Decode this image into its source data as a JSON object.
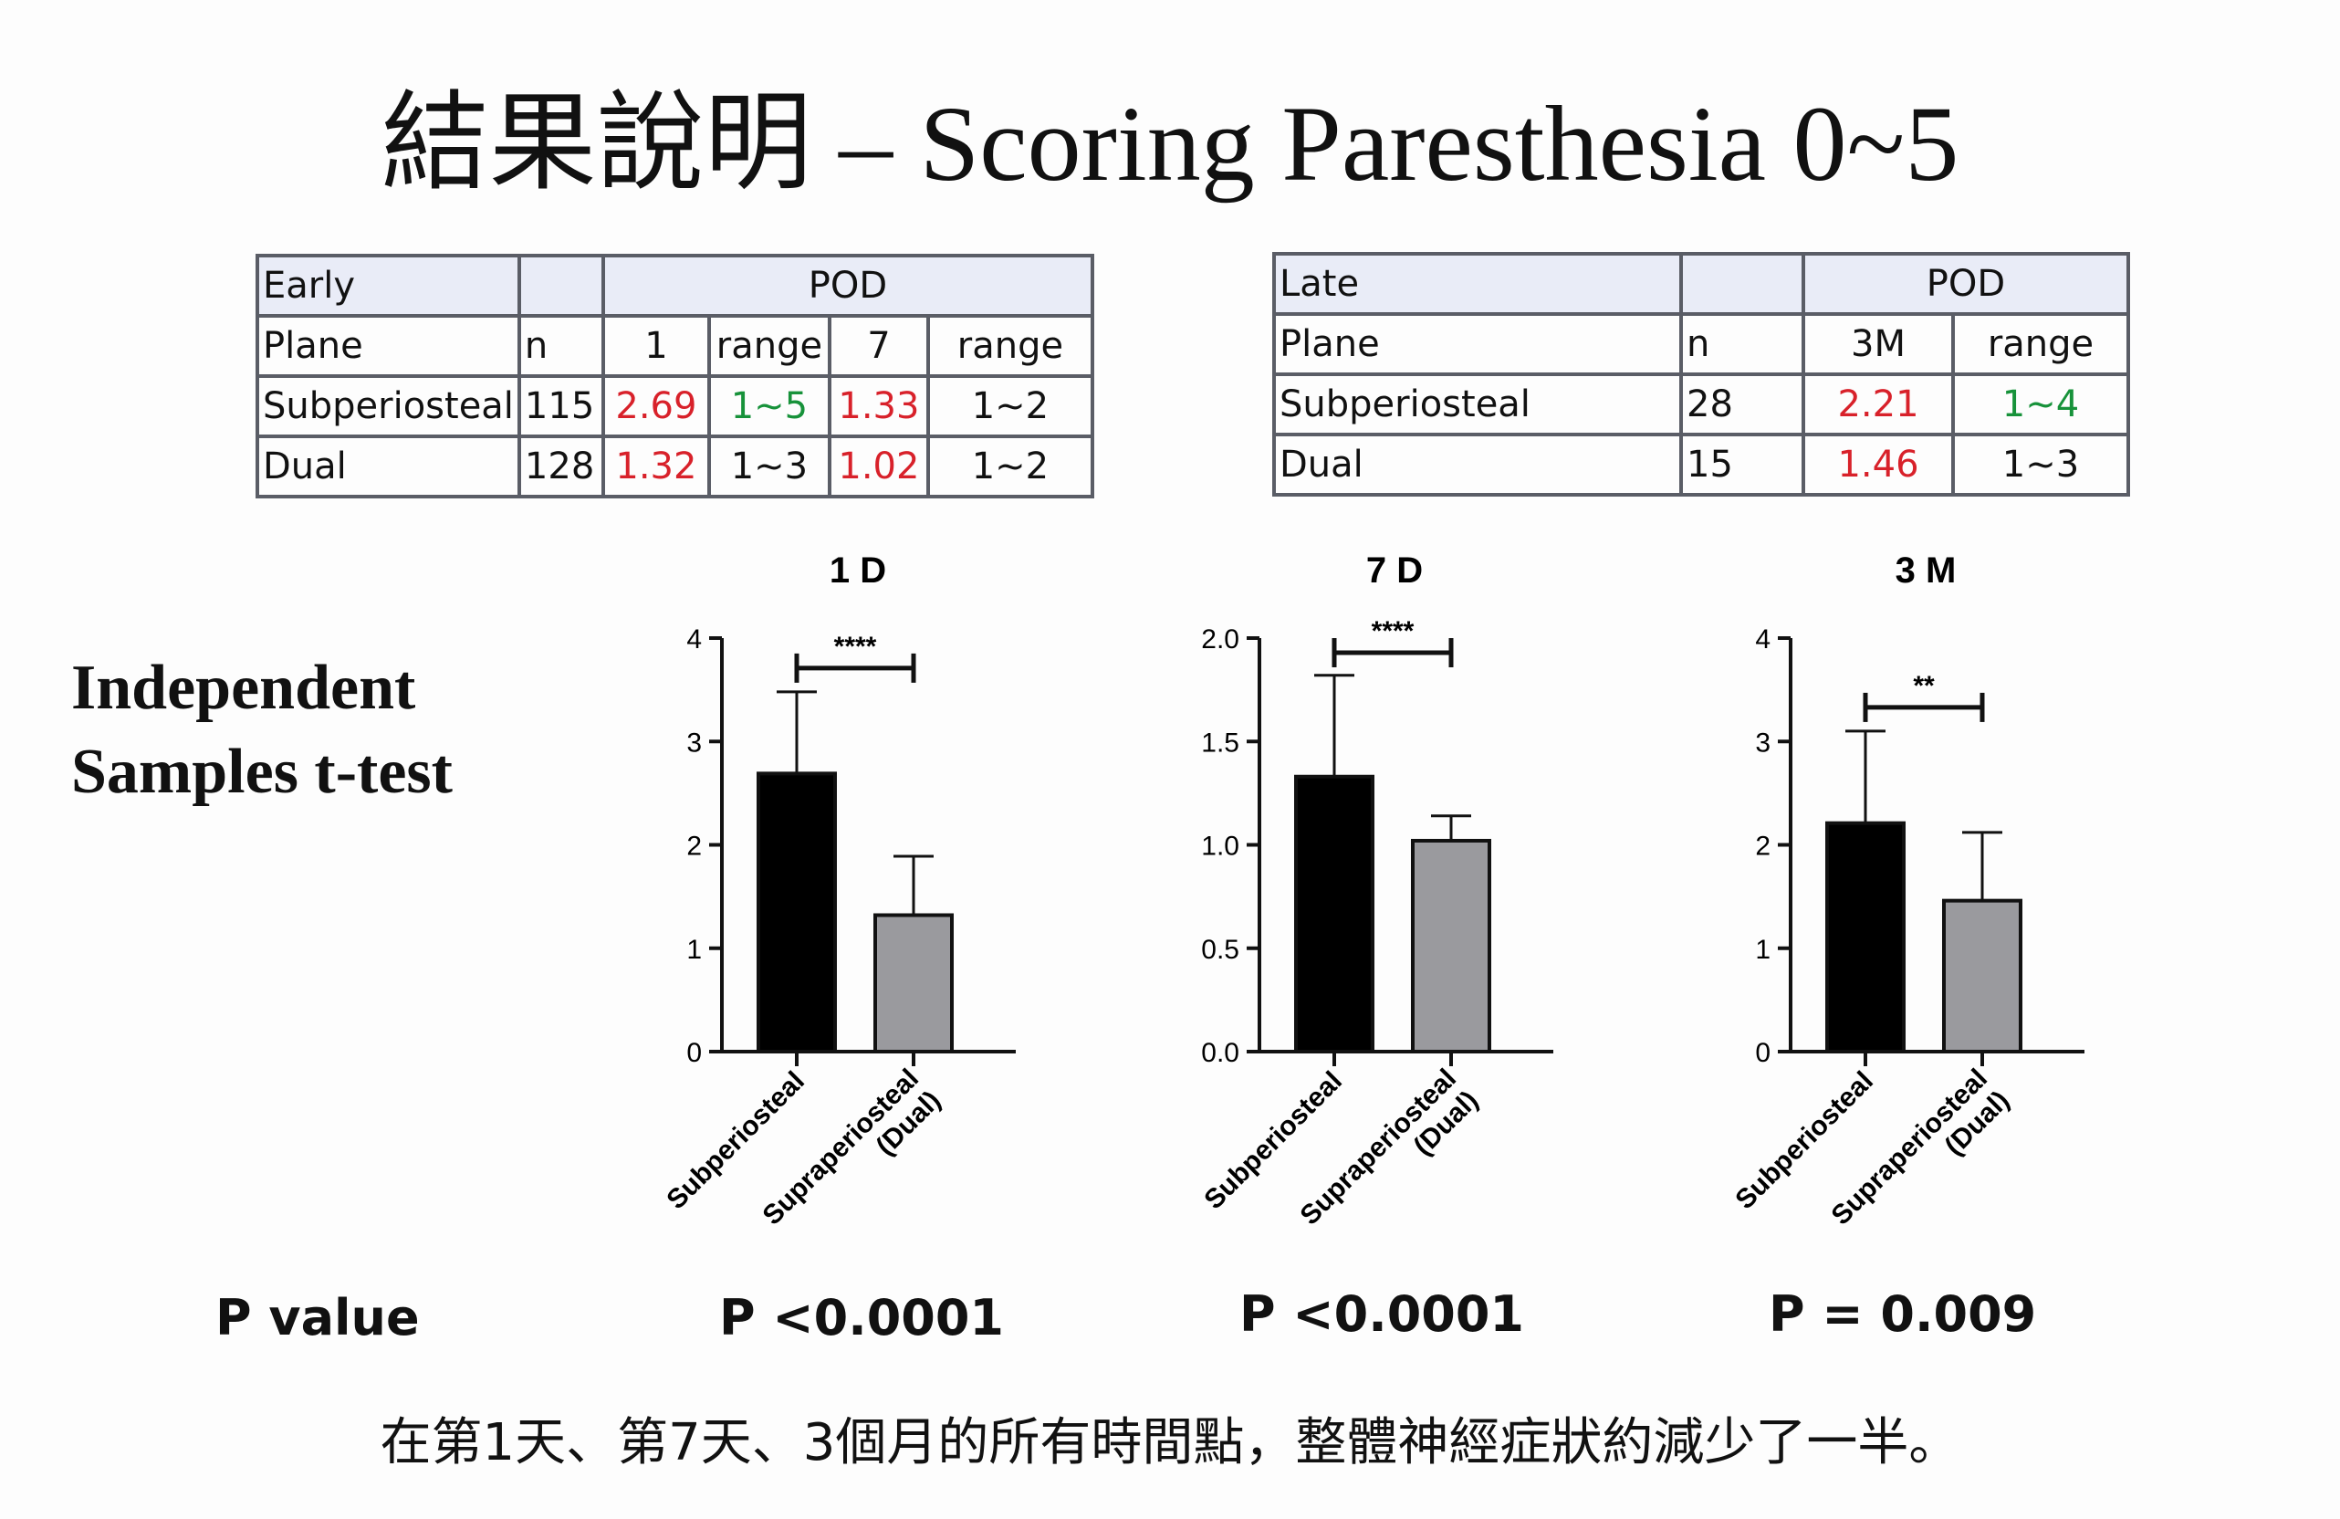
{
  "title": "結果說明 – Scoring Paresthesia 0~5",
  "early_table": {
    "hdr": [
      "Early",
      "",
      "POD"
    ],
    "cols": [
      "Plane",
      "n",
      "1",
      "range",
      "7",
      "range"
    ],
    "rows": [
      [
        "Subperiosteal",
        "115",
        "2.69",
        "1~5",
        "1.33",
        "1~2"
      ],
      [
        "Dual",
        "128",
        "1.32",
        "1~3",
        "1.02",
        "1~2"
      ]
    ]
  },
  "late_table": {
    "hdr": [
      "Late",
      "",
      "POD"
    ],
    "cols": [
      "Plane",
      "n",
      "3M",
      "range"
    ],
    "rows": [
      [
        "Subperiosteal",
        "28",
        "2.21",
        "1~4"
      ],
      [
        "Dual",
        "15",
        "1.46",
        "1~3"
      ]
    ]
  },
  "ttest_label": [
    "Independent",
    "Samples t-test"
  ],
  "p_value_label": "P value",
  "p_values": [
    "P <0.0001",
    "P <0.0001",
    "P = 0.009"
  ],
  "footer": "在第1天、第7天、3個月的所有時間點，整體神經症狀約減少了一半。",
  "colors": {
    "subperiosteal_bar": "#000000",
    "dual_bar": "#9a9a9e",
    "highlight_red": "#d8212a",
    "highlight_green": "#17923a"
  },
  "chart_data": [
    {
      "type": "bar",
      "title": "1 D",
      "categories": [
        "Subperiosteal",
        "Supraperiosteal (Dual)"
      ],
      "values": [
        2.69,
        1.32
      ],
      "error_upper": [
        3.48,
        1.89
      ],
      "ylim": [
        0,
        4
      ],
      "yticks": [
        "0",
        "1",
        "2",
        "3",
        "4"
      ],
      "significance": "****"
    },
    {
      "type": "bar",
      "title": "7 D",
      "categories": [
        "Subperiosteal",
        "Supraperiosteal (Dual)"
      ],
      "values": [
        1.33,
        1.02
      ],
      "error_upper": [
        1.82,
        1.14
      ],
      "ylim": [
        0,
        2
      ],
      "yticks": [
        "0.0",
        "0.5",
        "1.0",
        "1.5",
        "2.0"
      ],
      "significance": "****"
    },
    {
      "type": "bar",
      "title": "3 M",
      "categories": [
        "Subperiosteal",
        "Supraperiosteal (Dual)"
      ],
      "values": [
        2.21,
        1.46
      ],
      "error_upper": [
        3.1,
        2.12
      ],
      "ylim": [
        0,
        4
      ],
      "yticks": [
        "0",
        "1",
        "2",
        "3",
        "4"
      ],
      "significance": "**"
    }
  ]
}
